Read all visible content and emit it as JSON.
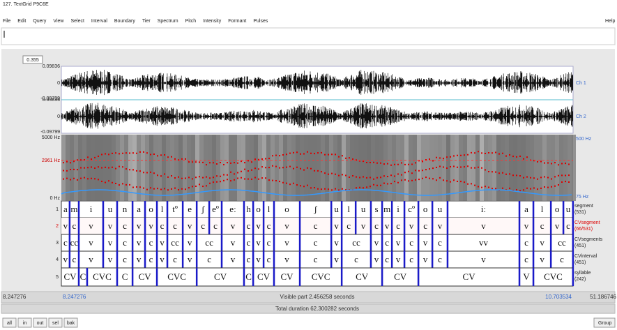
{
  "window": {
    "title": "127. TextGrid P9C6E",
    "menu": [
      "File",
      "Edit",
      "Query",
      "View",
      "Select",
      "Interval",
      "Boundary",
      "Tier",
      "Spectrum",
      "Pitch",
      "Intensity",
      "Formant",
      "Pulses"
    ],
    "help": "Help"
  },
  "editor": {
    "selection_duration": "0.355",
    "ch1": {
      "max": "0.09836",
      "zero": "0",
      "min": "-0.09799",
      "name": "Ch 1"
    },
    "ch2": {
      "max": "0.09836",
      "zero": "0",
      "min": "-0.09799",
      "name": "Ch 2"
    },
    "spectrogram": {
      "top": "5000 Hz",
      "cursor": "2961 Hz",
      "bottom": "0 Hz",
      "pitch_top": "500 Hz",
      "pitch_bottom": "75 Hz"
    },
    "visible_start": 8.247276,
    "visible_end": 10.703534,
    "visible_part": "Visible part 2.456258 seconds",
    "window_end": "51.186746",
    "total_duration": "Total duration 62.300282 seconds",
    "buttons": [
      "all",
      "in",
      "out",
      "sel",
      "bak"
    ],
    "group": "Group",
    "tiers": [
      {
        "number": "1",
        "name": "segment",
        "count": "(531)",
        "labels": [
          "a",
          "m",
          "i",
          "u",
          "n",
          "a",
          "o",
          "l",
          "tº",
          "e",
          "ʃ",
          "eº",
          "eː",
          "h",
          "o",
          "l",
          "o",
          "ʃ",
          "u",
          "l",
          "u",
          "s",
          "m",
          "i",
          "cº",
          "o",
          "u",
          "iː",
          "a",
          "l",
          "o",
          "u"
        ],
        "ends": [
          8.287,
          8.331,
          8.448,
          8.515,
          8.589,
          8.649,
          8.706,
          8.756,
          8.83,
          8.897,
          8.957,
          9.017,
          9.124,
          9.168,
          9.218,
          9.268,
          9.392,
          9.543,
          9.593,
          9.66,
          9.733,
          9.787,
          9.834,
          9.894,
          9.961,
          10.028,
          10.101,
          10.446,
          10.513,
          10.597,
          10.657,
          10.703
        ]
      },
      {
        "number": "2",
        "name": "CVsegment",
        "count": "(66/531)",
        "labels": [
          "v",
          "c",
          "v",
          "v",
          "c",
          "v",
          "v",
          "c",
          "c",
          "v",
          "c",
          "c",
          "v",
          "c",
          "v",
          "c",
          "v",
          "c",
          "v",
          "c",
          "v",
          "c",
          "v",
          "c",
          "v",
          "c",
          "v",
          "v",
          "v",
          "c",
          "v",
          "c"
        ],
        "ends": [
          8.287,
          8.331,
          8.448,
          8.515,
          8.589,
          8.649,
          8.706,
          8.756,
          8.83,
          8.897,
          8.957,
          9.017,
          9.124,
          9.168,
          9.218,
          9.268,
          9.392,
          9.543,
          9.593,
          9.66,
          9.733,
          9.787,
          9.834,
          9.894,
          9.961,
          10.028,
          10.101,
          10.446,
          10.513,
          10.597,
          10.657,
          10.703
        ]
      },
      {
        "number": "3",
        "name": "CVsegments",
        "count": "(451)",
        "labels": [
          "c",
          "cc",
          "v",
          "v",
          "c",
          "v",
          "c",
          "v",
          "cc",
          "v",
          "cc",
          "v",
          "c",
          "v",
          "c",
          "v",
          "c",
          "v",
          "cc",
          "v",
          "c",
          "v",
          "c",
          "v",
          "c",
          "vv",
          "c",
          "v",
          "cc"
        ],
        "ends": [
          8.287,
          8.331,
          8.448,
          8.515,
          8.589,
          8.649,
          8.706,
          8.756,
          8.83,
          8.897,
          9.017,
          9.124,
          9.168,
          9.218,
          9.268,
          9.392,
          9.543,
          9.593,
          9.733,
          9.787,
          9.834,
          9.894,
          9.961,
          10.028,
          10.101,
          10.446,
          10.513,
          10.597,
          10.703
        ]
      },
      {
        "number": "4",
        "name": "CVinterval",
        "count": "(451)",
        "labels": [
          "v",
          "c",
          "v",
          "v",
          "c",
          "v",
          "c",
          "v",
          "c",
          "v",
          "c",
          "v",
          "c",
          "v",
          "c",
          "v",
          "c",
          "v",
          "c",
          "v",
          "c",
          "v",
          "c",
          "v",
          "c",
          "v",
          "c",
          "v",
          "c"
        ],
        "ends": [
          8.287,
          8.331,
          8.448,
          8.515,
          8.589,
          8.649,
          8.706,
          8.756,
          8.83,
          8.897,
          9.017,
          9.124,
          9.168,
          9.218,
          9.268,
          9.392,
          9.543,
          9.593,
          9.733,
          9.787,
          9.834,
          9.894,
          9.961,
          10.028,
          10.101,
          10.446,
          10.513,
          10.597,
          10.703
        ]
      },
      {
        "number": "5",
        "name": "syllable",
        "count": "(242)",
        "labels": [
          "CV",
          "C",
          "CVC",
          "C",
          "CV",
          "CVC",
          "CV",
          "C",
          "CV",
          "CV",
          "CVC",
          "CV",
          "CV",
          "CV",
          "V",
          "CVC"
        ],
        "ends": [
          8.331,
          8.371,
          8.515,
          8.589,
          8.706,
          8.897,
          9.124,
          9.168,
          9.268,
          9.392,
          9.593,
          9.787,
          9.961,
          10.446,
          10.513,
          10.703
        ]
      }
    ]
  }
}
